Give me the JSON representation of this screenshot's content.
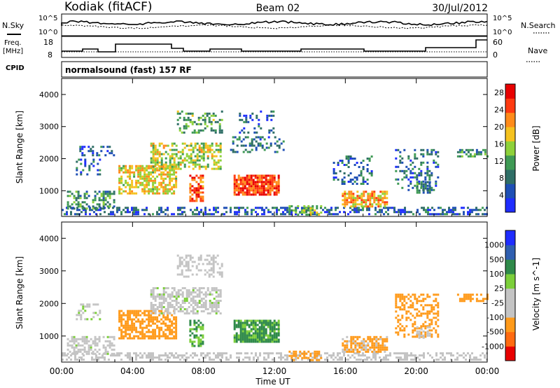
{
  "header": {
    "station": "Kodiak (fitACF)",
    "beam": "Beam 02",
    "date": "30/Jul/2012"
  },
  "aux": {
    "nsky_label": "N.Sky",
    "freq_label_line1": "Freq.",
    "freq_label_line2": "[MHz]",
    "cpid_label": "CPID",
    "nsearch_label": "N.Search",
    "nave_label": "Nave",
    "nsky_ticks": [
      "10^5",
      "10^0"
    ],
    "freq_ticks": [
      "18",
      "8"
    ],
    "nave_ticks": [
      "60",
      "0"
    ],
    "nsearch_ticks": [
      "10^5",
      "10^0"
    ],
    "cpid_text": "normalsound (fast) 157 RF"
  },
  "x_axis": {
    "label": "Time UT",
    "ticks": [
      "00:00",
      "04:00",
      "08:00",
      "12:00",
      "16:00",
      "20:00",
      "00:00"
    ]
  },
  "colors": {
    "power": [
      "#1f2dff",
      "#1e4fb5",
      "#2f6e66",
      "#3f9a55",
      "#8ed13a",
      "#f5c21f",
      "#ff8b1a",
      "#ff3a10",
      "#e80000"
    ],
    "velocity": [
      "#e80000",
      "#ff6a10",
      "#ff9a1a",
      "#c4c4c4",
      "#c4c4c4",
      "#7ccf3a",
      "#2f8a4a",
      "#2f5fb0",
      "#1f2dff"
    ]
  },
  "chart_data": [
    {
      "type": "heatmap",
      "name": "Power",
      "ylabel": "Slant Range [km]",
      "ytick_labels": [
        "1000",
        "2000",
        "3000",
        "4000"
      ],
      "ylim": [
        200,
        4500
      ],
      "xlim_hours": [
        0,
        24
      ],
      "colorbar": {
        "label": "Power [dB]",
        "ticks": [
          "4",
          "8",
          "12",
          "16",
          "20",
          "24",
          "28"
        ],
        "range": [
          0,
          30
        ]
      },
      "echo_regions": [
        {
          "t0": 0.0,
          "t1": 24.0,
          "r0": 250,
          "r1": 500,
          "level": 6,
          "density": 0.45
        },
        {
          "t0": 0.3,
          "t1": 3.0,
          "r0": 450,
          "r1": 1000,
          "level": 10,
          "density": 0.55
        },
        {
          "t0": 0.8,
          "t1": 2.2,
          "r0": 1500,
          "r1": 2000,
          "level": 7,
          "density": 0.4
        },
        {
          "t0": 1.0,
          "t1": 3.0,
          "r0": 2100,
          "r1": 2400,
          "level": 6,
          "density": 0.35
        },
        {
          "t0": 3.2,
          "t1": 6.5,
          "r0": 900,
          "r1": 1800,
          "level": 18,
          "density": 0.65
        },
        {
          "t0": 5.0,
          "t1": 9.0,
          "r0": 1700,
          "r1": 2500,
          "level": 16,
          "density": 0.55
        },
        {
          "t0": 7.2,
          "t1": 8.0,
          "r0": 700,
          "r1": 1500,
          "level": 24,
          "density": 0.6
        },
        {
          "t0": 6.5,
          "t1": 9.0,
          "r0": 2800,
          "r1": 3500,
          "level": 12,
          "density": 0.35
        },
        {
          "t0": 9.7,
          "t1": 12.3,
          "r0": 850,
          "r1": 1500,
          "level": 25,
          "density": 0.85
        },
        {
          "t0": 9.5,
          "t1": 12.5,
          "r0": 2200,
          "r1": 2700,
          "level": 8,
          "density": 0.3
        },
        {
          "t0": 10.0,
          "t1": 12.0,
          "r0": 2800,
          "r1": 3500,
          "level": 6,
          "density": 0.25
        },
        {
          "t0": 12.8,
          "t1": 14.6,
          "r0": 250,
          "r1": 550,
          "level": 14,
          "density": 0.5
        },
        {
          "t0": 15.8,
          "t1": 18.3,
          "r0": 500,
          "r1": 1000,
          "level": 20,
          "density": 0.7
        },
        {
          "t0": 15.3,
          "t1": 17.5,
          "r0": 1200,
          "r1": 2100,
          "level": 7,
          "density": 0.3
        },
        {
          "t0": 18.8,
          "t1": 21.2,
          "r0": 1000,
          "r1": 2300,
          "level": 7,
          "density": 0.3
        },
        {
          "t0": 20.0,
          "t1": 20.8,
          "r0": 950,
          "r1": 1300,
          "level": 9,
          "density": 0.55
        },
        {
          "t0": 22.3,
          "t1": 24.0,
          "r0": 2050,
          "r1": 2300,
          "level": 10,
          "density": 0.6
        }
      ]
    },
    {
      "type": "heatmap",
      "name": "Velocity",
      "ylabel": "Slant Range [km]",
      "ytick_labels": [
        "1000",
        "2000",
        "3000",
        "4000"
      ],
      "ylim": [
        200,
        4500
      ],
      "xlim_hours": [
        0,
        24
      ],
      "colorbar": {
        "label": "Velocity [m s^-1]",
        "ticks": [
          "1000",
          "500",
          "100",
          "25",
          "-25",
          "-100",
          "-500",
          "-1000"
        ],
        "range": [
          -1000,
          1000
        ]
      },
      "echo_regions": [
        {
          "t0": 0.0,
          "t1": 24.0,
          "r0": 250,
          "r1": 500,
          "level": -30,
          "density": 0.45
        },
        {
          "t0": 0.3,
          "t1": 3.0,
          "r0": 450,
          "r1": 1000,
          "level": 0,
          "density": 0.55
        },
        {
          "t0": 0.8,
          "t1": 2.2,
          "r0": 1500,
          "r1": 2000,
          "level": 10,
          "density": 0.4
        },
        {
          "t0": 3.2,
          "t1": 6.5,
          "r0": 900,
          "r1": 1800,
          "level": -250,
          "density": 0.65
        },
        {
          "t0": 5.0,
          "t1": 9.0,
          "r0": 1700,
          "r1": 2500,
          "level": 0,
          "density": 0.55
        },
        {
          "t0": 7.2,
          "t1": 8.0,
          "r0": 700,
          "r1": 1500,
          "level": 120,
          "density": 0.6
        },
        {
          "t0": 6.5,
          "t1": 9.0,
          "r0": 2800,
          "r1": 3500,
          "level": -60,
          "density": 0.35
        },
        {
          "t0": 9.7,
          "t1": 12.3,
          "r0": 850,
          "r1": 1500,
          "level": 150,
          "density": 0.85
        },
        {
          "t0": 12.8,
          "t1": 14.6,
          "r0": 250,
          "r1": 550,
          "level": -200,
          "density": 0.5
        },
        {
          "t0": 15.8,
          "t1": 18.3,
          "r0": 500,
          "r1": 1000,
          "level": -150,
          "density": 0.7
        },
        {
          "t0": 18.8,
          "t1": 21.2,
          "r0": 1000,
          "r1": 2300,
          "level": -300,
          "density": 0.45
        },
        {
          "t0": 20.0,
          "t1": 20.8,
          "r0": 950,
          "r1": 1300,
          "level": 0,
          "density": 0.55
        },
        {
          "t0": 22.3,
          "t1": 24.0,
          "r0": 2050,
          "r1": 2300,
          "level": -250,
          "density": 0.6
        }
      ]
    }
  ]
}
